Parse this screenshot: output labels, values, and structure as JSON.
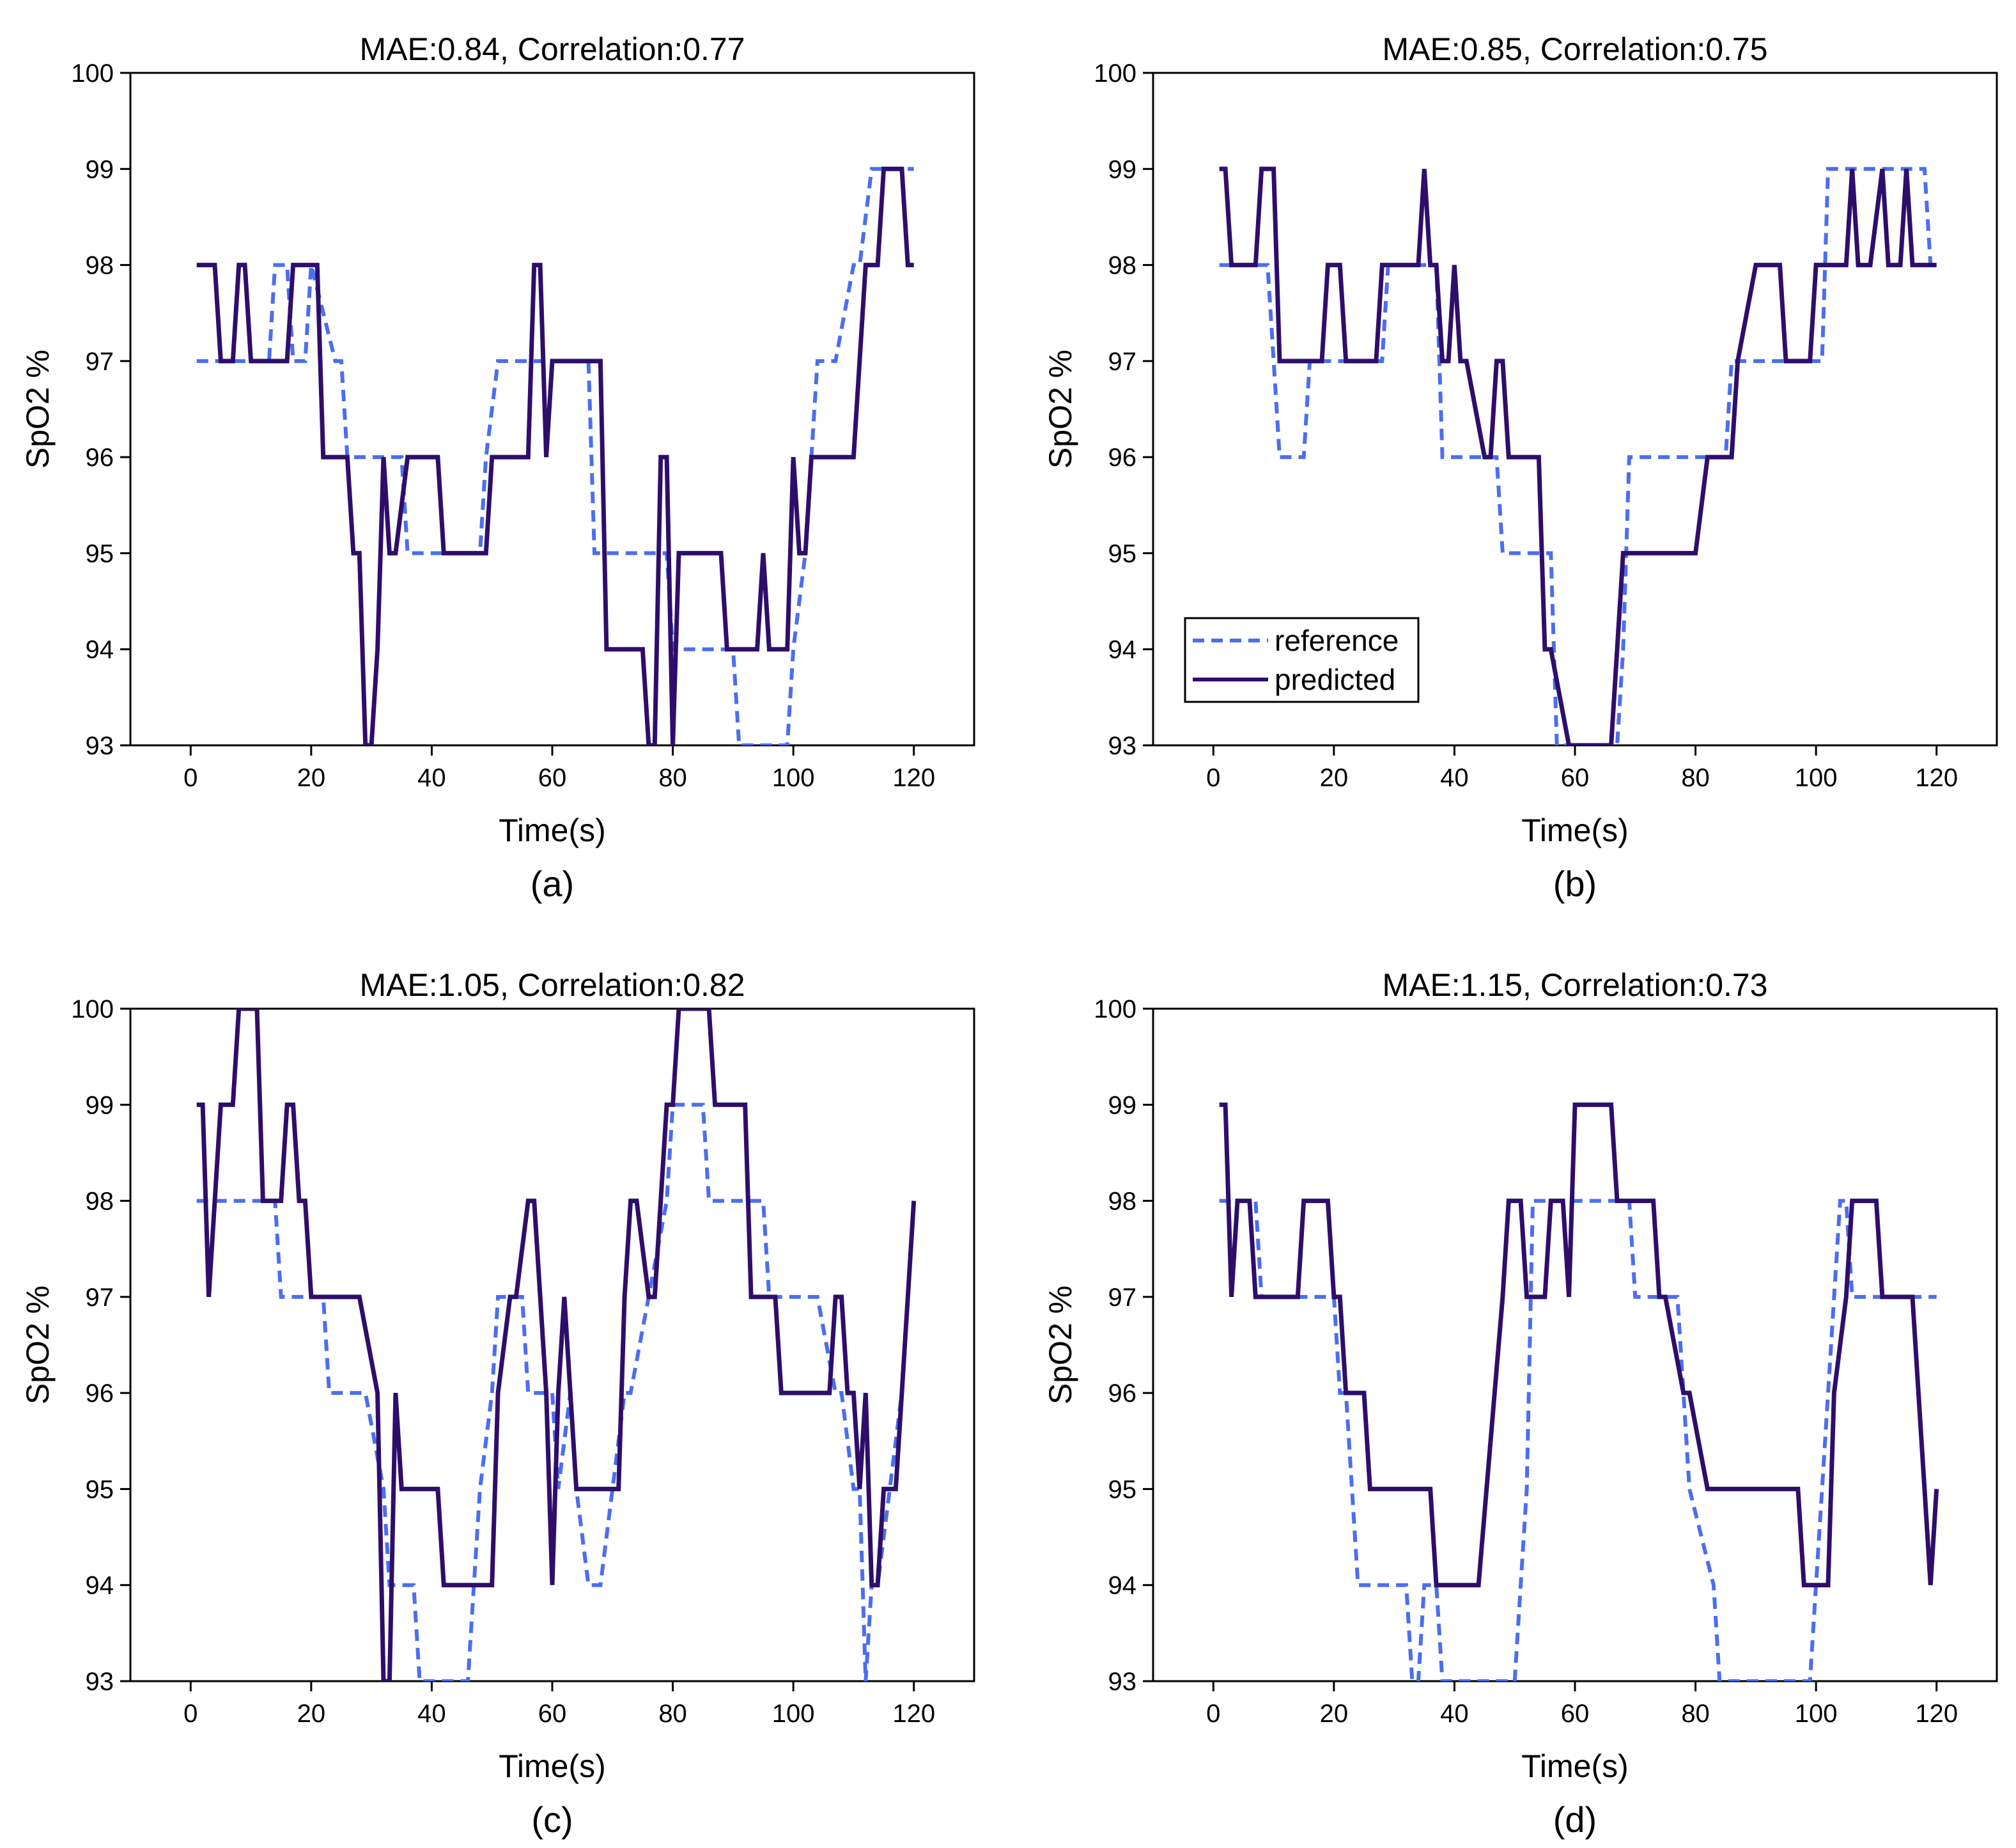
{
  "colors": {
    "reference": "#4b6ef0",
    "predicted": "#2e0e6b",
    "axis": "#000000",
    "background": "#ffffff"
  },
  "legend": {
    "placement": "lower-left of panel (b)",
    "entries": [
      {
        "label": "reference",
        "style": "dashed",
        "color": "#4b6ef0"
      },
      {
        "label": "predicted",
        "style": "solid",
        "color": "#2e0e6b"
      }
    ]
  },
  "chart_data": [
    {
      "type": "line",
      "panel": "(a)",
      "title": "MAE:0.84, Correlation:0.77",
      "xlabel": "Time(s)",
      "ylabel": "SpO2 %",
      "xlim": [
        -10,
        130
      ],
      "ylim": [
        93,
        100
      ],
      "xticks": [
        0,
        20,
        40,
        60,
        80,
        100,
        120
      ],
      "yticks": [
        93,
        94,
        95,
        96,
        97,
        98,
        99,
        100
      ],
      "grid": false,
      "series": [
        {
          "name": "reference",
          "style": "dashed",
          "x": [
            1,
            13,
            14,
            16,
            17,
            19,
            20,
            24,
            25,
            26,
            35,
            36,
            37,
            48,
            49,
            51,
            66,
            67,
            79,
            80,
            90,
            91,
            99,
            100,
            102,
            103,
            104,
            106,
            107,
            110,
            111,
            113,
            114,
            120
          ],
          "y": [
            97,
            97,
            98,
            98,
            97,
            97,
            98,
            97,
            97,
            96,
            96,
            95,
            95,
            95,
            96,
            97,
            97,
            95,
            95,
            94,
            94,
            93,
            93,
            94,
            95,
            96,
            97,
            97,
            97,
            98,
            98,
            99,
            99,
            99
          ]
        },
        {
          "name": "predicted",
          "style": "solid",
          "x": [
            1,
            4,
            5,
            7,
            8,
            9,
            10,
            16,
            17,
            21,
            22,
            26,
            27,
            28,
            29,
            30,
            31,
            32,
            33,
            34,
            36,
            37,
            41,
            42,
            49,
            50,
            56,
            57,
            58,
            59,
            60,
            68,
            69,
            75,
            76,
            77,
            78,
            79,
            80,
            81,
            84,
            88,
            89,
            94,
            95,
            96,
            99,
            100,
            101,
            102,
            103,
            104,
            110,
            112,
            114,
            115,
            118,
            119,
            120
          ],
          "y": [
            98,
            98,
            97,
            97,
            98,
            98,
            97,
            97,
            98,
            98,
            96,
            96,
            95,
            95,
            93,
            93,
            94,
            96,
            95,
            95,
            96,
            96,
            96,
            95,
            95,
            96,
            96,
            98,
            98,
            96,
            97,
            97,
            94,
            94,
            93,
            93,
            96,
            96,
            93,
            95,
            95,
            95,
            94,
            94,
            95,
            94,
            94,
            96,
            95,
            95,
            96,
            96,
            96,
            98,
            98,
            99,
            99,
            98,
            98
          ]
        }
      ]
    },
    {
      "type": "line",
      "panel": "(b)",
      "title": "MAE:0.85, Correlation:0.75",
      "xlabel": "Time(s)",
      "ylabel": "SpO2 %",
      "xlim": [
        -10,
        130
      ],
      "ylim": [
        93,
        100
      ],
      "xticks": [
        0,
        20,
        40,
        60,
        80,
        100,
        120
      ],
      "yticks": [
        93,
        94,
        95,
        96,
        97,
        98,
        99,
        100
      ],
      "grid": false,
      "series": [
        {
          "name": "reference",
          "style": "dashed",
          "x": [
            1,
            9,
            10,
            11,
            12,
            15,
            16,
            19,
            20,
            28,
            29,
            37,
            38,
            47,
            48,
            56,
            57,
            67,
            68,
            69,
            85,
            86,
            101,
            102,
            110,
            111,
            118,
            119,
            120
          ],
          "y": [
            98,
            98,
            97,
            96,
            96,
            96,
            97,
            97,
            97,
            97,
            98,
            98,
            96,
            96,
            95,
            95,
            93,
            93,
            94,
            96,
            96,
            97,
            97,
            99,
            99,
            99,
            99,
            98,
            98
          ]
        },
        {
          "name": "predicted",
          "style": "solid",
          "x": [
            1,
            2,
            3,
            7,
            8,
            10,
            11,
            18,
            19,
            21,
            22,
            23,
            27,
            28,
            34,
            35,
            36,
            37,
            38,
            39,
            40,
            41,
            42,
            45,
            46,
            47,
            48,
            49,
            50,
            51,
            54,
            55,
            56,
            59,
            60,
            61,
            62,
            63,
            65,
            66,
            67,
            68,
            69,
            70,
            71,
            75,
            80,
            82,
            83,
            86,
            87,
            90,
            94,
            95,
            99,
            100,
            105,
            106,
            107,
            108,
            109,
            111,
            112,
            113,
            114,
            115,
            116,
            117,
            118,
            119,
            120
          ],
          "y": [
            99,
            99,
            98,
            98,
            99,
            99,
            97,
            97,
            98,
            98,
            97,
            97,
            97,
            98,
            98,
            99,
            98,
            98,
            97,
            97,
            98,
            97,
            97,
            96,
            96,
            97,
            97,
            96,
            96,
            96,
            96,
            94,
            94,
            93,
            93,
            93,
            93,
            93,
            93,
            93,
            94,
            95,
            95,
            95,
            95,
            95,
            95,
            96,
            96,
            96,
            97,
            98,
            98,
            97,
            97,
            98,
            98,
            99,
            98,
            98,
            98,
            99,
            98,
            98,
            98,
            99,
            98,
            98,
            98,
            98,
            98
          ]
        }
      ]
    },
    {
      "type": "line",
      "panel": "(c)",
      "title": "MAE:1.05, Correlation:0.82",
      "xlabel": "Time(s)",
      "ylabel": "SpO2 %",
      "xlim": [
        -10,
        130
      ],
      "ylim": [
        93,
        100
      ],
      "xticks": [
        0,
        20,
        40,
        60,
        80,
        100,
        120
      ],
      "yticks": [
        93,
        94,
        95,
        96,
        97,
        98,
        99,
        100
      ],
      "grid": false,
      "series": [
        {
          "name": "reference",
          "style": "dashed",
          "x": [
            1,
            14,
            15,
            16,
            22,
            23,
            24,
            28,
            29,
            32,
            33,
            34,
            37,
            38,
            40,
            46,
            47,
            48,
            50,
            51,
            54,
            55,
            56,
            60,
            61,
            63,
            64,
            66,
            67,
            68,
            72,
            73,
            79,
            80,
            84,
            85,
            86,
            95,
            96,
            103,
            104,
            107,
            108,
            110,
            111,
            112,
            113,
            114,
            118,
            120
          ],
          "y": [
            98,
            98,
            97,
            97,
            97,
            96,
            96,
            96,
            96,
            95,
            94,
            94,
            94,
            93,
            93,
            93,
            94,
            95,
            96,
            97,
            97,
            97,
            96,
            96,
            95,
            96,
            95,
            94,
            94,
            94,
            96,
            96,
            98,
            99,
            99,
            99,
            98,
            98,
            97,
            97,
            97,
            96,
            96,
            95,
            95,
            93,
            94,
            94,
            96,
            98
          ]
        },
        {
          "name": "predicted",
          "style": "solid",
          "x": [
            1,
            2,
            3,
            5,
            6,
            7,
            8,
            9,
            11,
            12,
            13,
            15,
            16,
            17,
            18,
            19,
            20,
            26,
            28,
            31,
            32,
            33,
            34,
            35,
            36,
            41,
            42,
            50,
            51,
            53,
            54,
            56,
            57,
            59,
            60,
            61,
            62,
            63,
            64,
            65,
            71,
            72,
            73,
            74,
            76,
            77,
            78,
            79,
            80,
            81,
            82,
            83,
            86,
            87,
            88,
            92,
            93,
            97,
            98,
            99,
            106,
            107,
            108,
            109,
            110,
            111,
            112,
            113,
            114,
            115,
            117,
            118,
            119,
            120
          ],
          "y": [
            99,
            99,
            97,
            99,
            99,
            99,
            100,
            100,
            100,
            98,
            98,
            98,
            99,
            99,
            98,
            98,
            97,
            97,
            97,
            96,
            93,
            93,
            96,
            95,
            95,
            95,
            94,
            94,
            96,
            97,
            97,
            98,
            98,
            96,
            94,
            96,
            97,
            96,
            95,
            95,
            95,
            97,
            98,
            98,
            97,
            97,
            98,
            99,
            99,
            100,
            100,
            100,
            100,
            99,
            99,
            99,
            97,
            97,
            96,
            96,
            96,
            97,
            97,
            96,
            96,
            95,
            96,
            94,
            94,
            95,
            95,
            96,
            97,
            98
          ]
        }
      ]
    },
    {
      "type": "line",
      "panel": "(d)",
      "title": "MAE:1.15, Correlation:0.73",
      "xlabel": "Time(s)",
      "ylabel": "SpO2 %",
      "xlim": [
        -10,
        130
      ],
      "ylim": [
        93,
        100
      ],
      "xticks": [
        0,
        20,
        40,
        60,
        80,
        100,
        120
      ],
      "yticks": [
        93,
        94,
        95,
        96,
        97,
        98,
        99,
        100
      ],
      "grid": false,
      "series": [
        {
          "name": "reference",
          "style": "dashed",
          "x": [
            1,
            7,
            8,
            20,
            21,
            22,
            23,
            24,
            25,
            32,
            33,
            34,
            35,
            36,
            37,
            38,
            50,
            51,
            52,
            53,
            69,
            70,
            71,
            77,
            78,
            79,
            83,
            84,
            85,
            86,
            99,
            100,
            101,
            102,
            103,
            104,
            105,
            106,
            107,
            108,
            109,
            110,
            120
          ],
          "y": [
            98,
            98,
            97,
            97,
            96,
            96,
            95,
            94,
            94,
            94,
            93,
            93,
            94,
            94,
            94,
            93,
            93,
            94,
            95,
            98,
            98,
            97,
            97,
            97,
            96,
            95,
            94,
            93,
            93,
            93,
            93,
            94,
            95,
            96,
            97,
            98,
            98,
            97,
            97,
            97,
            97,
            97,
            97
          ]
        },
        {
          "name": "predicted",
          "style": "solid",
          "x": [
            1,
            2,
            3,
            4,
            6,
            7,
            8,
            14,
            15,
            18,
            19,
            20,
            21,
            22,
            25,
            26,
            36,
            37,
            44,
            48,
            49,
            51,
            52,
            55,
            56,
            58,
            59,
            60,
            66,
            67,
            73,
            74,
            75,
            78,
            79,
            82,
            83,
            97,
            98,
            102,
            103,
            105,
            106,
            110,
            111,
            114,
            115,
            116,
            117,
            118,
            119,
            120
          ],
          "y": [
            99,
            99,
            97,
            98,
            98,
            97,
            97,
            97,
            98,
            98,
            98,
            97,
            97,
            96,
            96,
            95,
            95,
            94,
            94,
            97,
            98,
            98,
            97,
            97,
            98,
            98,
            97,
            99,
            99,
            98,
            98,
            97,
            97,
            96,
            96,
            95,
            95,
            95,
            94,
            94,
            96,
            97,
            98,
            98,
            97,
            97,
            97,
            97,
            96,
            95,
            94,
            95
          ]
        }
      ]
    }
  ]
}
